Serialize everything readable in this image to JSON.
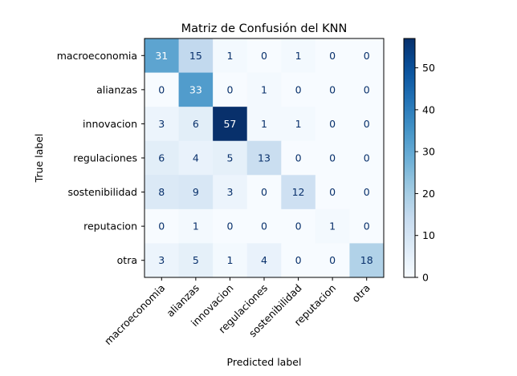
{
  "chart_data": {
    "type": "heatmap",
    "title": "Matriz de Confusión del KNN",
    "xlabel": "Predicted label",
    "ylabel": "True label",
    "labels": [
      "macroeconomia",
      "alianzas",
      "innovacion",
      "regulaciones",
      "sostenibilidad",
      "reputacion",
      "otra"
    ],
    "matrix": [
      [
        31,
        15,
        1,
        0,
        1,
        0,
        0
      ],
      [
        0,
        33,
        0,
        1,
        0,
        0,
        0
      ],
      [
        3,
        6,
        57,
        1,
        1,
        0,
        0
      ],
      [
        6,
        4,
        5,
        13,
        0,
        0,
        0
      ],
      [
        8,
        9,
        3,
        0,
        12,
        0,
        0
      ],
      [
        0,
        1,
        0,
        0,
        0,
        1,
        0
      ],
      [
        3,
        5,
        1,
        4,
        0,
        0,
        18
      ]
    ],
    "colormap": "Blues",
    "vmin": 0,
    "vmax": 57,
    "colorbar_ticks": [
      "0",
      "10",
      "20",
      "30",
      "40",
      "50"
    ],
    "colorbar_tick_values": [
      0,
      10,
      20,
      30,
      40,
      50
    ],
    "grid": false
  }
}
